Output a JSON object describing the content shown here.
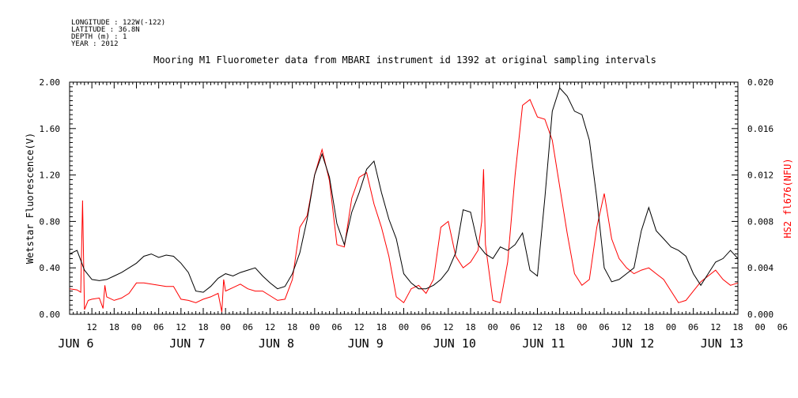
{
  "header": {
    "info_lines": [
      "LONGITUDE : 122W(-122)",
      "LATITUDE : 36.8N",
      "DEPTH (m) : 1",
      "YEAR : 2012"
    ],
    "title": "Mooring M1 Fluorometer data from MBARI instrument id 1392 at original sampling intervals"
  },
  "chart_data": {
    "type": "line",
    "title": "Mooring M1 Fluorometer data from MBARI instrument id 1392 at original sampling intervals",
    "xlabel": "",
    "x_unit": "hours since JUN 6 00:00 (2012)",
    "xlim": [
      6,
      186
    ],
    "x_tick_labels": [
      "12",
      "18",
      "00",
      "06",
      "12",
      "18",
      "00",
      "06",
      "12",
      "18",
      "00",
      "06",
      "12",
      "18",
      "00",
      "06",
      "12",
      "18",
      "00",
      "06",
      "12",
      "18",
      "00",
      "06",
      "12",
      "18",
      "00",
      "06",
      "12",
      "18",
      "00",
      "06"
    ],
    "x_day_labels": [
      "JUN 6",
      "JUN 7",
      "JUN 8",
      "JUN 9",
      "JUN 10",
      "JUN 11",
      "JUN 12",
      "JUN 13"
    ],
    "y_left": {
      "label": "Wetstar Fluorescence(V)",
      "lim": [
        0,
        2.0
      ],
      "ticks": [
        "0.00",
        "0.40",
        "0.80",
        "1.20",
        "1.60",
        "2.00"
      ],
      "color": "#000000"
    },
    "y_right": {
      "label": "HS2 fl676(NFU)",
      "lim": [
        0,
        0.02
      ],
      "ticks": [
        "0.000",
        "0.004",
        "0.008",
        "0.012",
        "0.016",
        "0.020"
      ],
      "color": "#ff0000"
    },
    "series": [
      {
        "name": "Wetstar Fluorescence(V)",
        "axis": "left",
        "color": "#000000",
        "x": [
          6,
          8,
          10,
          12,
          14,
          16,
          18,
          20,
          22,
          24,
          26,
          28,
          30,
          32,
          34,
          36,
          38,
          40,
          42,
          44,
          46,
          48,
          50,
          52,
          54,
          56,
          58,
          60,
          62,
          64,
          66,
          68,
          70,
          72,
          74,
          76,
          78,
          80,
          82,
          84,
          86,
          88,
          90,
          92,
          94,
          96,
          98,
          100,
          102,
          104,
          106,
          108,
          110,
          112,
          114,
          116,
          118,
          120,
          122,
          124,
          126,
          128,
          130,
          132,
          134,
          136,
          138,
          140,
          142,
          144,
          146,
          148,
          150,
          152,
          154,
          156,
          158,
          160,
          162,
          164,
          166,
          168,
          170,
          172,
          174,
          176,
          178,
          180,
          182,
          184,
          186
        ],
        "y": [
          0.52,
          0.55,
          0.38,
          0.3,
          0.29,
          0.3,
          0.33,
          0.36,
          0.4,
          0.44,
          0.5,
          0.52,
          0.49,
          0.51,
          0.5,
          0.44,
          0.36,
          0.2,
          0.19,
          0.24,
          0.31,
          0.35,
          0.33,
          0.36,
          0.38,
          0.4,
          0.33,
          0.27,
          0.22,
          0.24,
          0.35,
          0.53,
          0.82,
          1.2,
          1.38,
          1.18,
          0.78,
          0.6,
          0.88,
          1.05,
          1.25,
          1.32,
          1.05,
          0.82,
          0.65,
          0.35,
          0.27,
          0.22,
          0.22,
          0.25,
          0.3,
          0.38,
          0.53,
          0.9,
          0.88,
          0.6,
          0.52,
          0.48,
          0.58,
          0.55,
          0.6,
          0.7,
          0.38,
          0.33,
          1.0,
          1.75,
          1.95,
          1.88,
          1.75,
          1.72,
          1.5,
          1.0,
          0.4,
          0.28,
          0.3,
          0.35,
          0.4,
          0.72,
          0.92,
          0.72,
          0.65,
          0.58,
          0.55,
          0.5,
          0.35,
          0.25,
          0.35,
          0.45,
          0.48,
          0.55,
          0.48
        ]
      },
      {
        "name": "HS2 fl676(NFU)",
        "axis": "right",
        "color": "#ff0000",
        "x": [
          6,
          8,
          9,
          9.5,
          10,
          11,
          12,
          14,
          15,
          15.5,
          16,
          18,
          20,
          22,
          24,
          26,
          28,
          30,
          32,
          34,
          36,
          38,
          40,
          42,
          44,
          46,
          47,
          47.5,
          48,
          50,
          52,
          54,
          56,
          58,
          60,
          62,
          64,
          66,
          68,
          70,
          72,
          74,
          76,
          78,
          80,
          82,
          84,
          86,
          88,
          90,
          92,
          94,
          96,
          98,
          100,
          102,
          104,
          106,
          108,
          110,
          112,
          114,
          116,
          117,
          117.5,
          118,
          120,
          122,
          124,
          126,
          128,
          130,
          132,
          134,
          136,
          138,
          140,
          142,
          144,
          146,
          148,
          150,
          152,
          154,
          156,
          158,
          160,
          162,
          164,
          166,
          168,
          170,
          172,
          174,
          176,
          178,
          180,
          182,
          184,
          186
        ],
        "y": [
          0.0022,
          0.0021,
          0.0019,
          0.0098,
          0.0004,
          0.0012,
          0.0013,
          0.0014,
          0.0005,
          0.0025,
          0.0015,
          0.0012,
          0.0014,
          0.0018,
          0.0027,
          0.0027,
          0.0026,
          0.0025,
          0.0024,
          0.0024,
          0.0013,
          0.0012,
          0.001,
          0.0013,
          0.0015,
          0.0018,
          0.0002,
          0.003,
          0.002,
          0.0023,
          0.0026,
          0.0022,
          0.002,
          0.002,
          0.0016,
          0.0012,
          0.0013,
          0.003,
          0.0075,
          0.0085,
          0.012,
          0.0142,
          0.0115,
          0.006,
          0.0058,
          0.01,
          0.0118,
          0.0122,
          0.0095,
          0.0075,
          0.005,
          0.0015,
          0.001,
          0.0022,
          0.0025,
          0.0018,
          0.003,
          0.0075,
          0.008,
          0.005,
          0.004,
          0.0045,
          0.0055,
          0.008,
          0.0125,
          0.006,
          0.0012,
          0.001,
          0.0045,
          0.012,
          0.018,
          0.0185,
          0.017,
          0.0168,
          0.015,
          0.011,
          0.007,
          0.0035,
          0.0025,
          0.003,
          0.0075,
          0.0104,
          0.0065,
          0.0048,
          0.004,
          0.0035,
          0.0038,
          0.004,
          0.0035,
          0.003,
          0.002,
          0.001,
          0.0012,
          0.002,
          0.0028,
          0.0033,
          0.0038,
          0.003,
          0.0025,
          0.0027
        ]
      }
    ]
  }
}
